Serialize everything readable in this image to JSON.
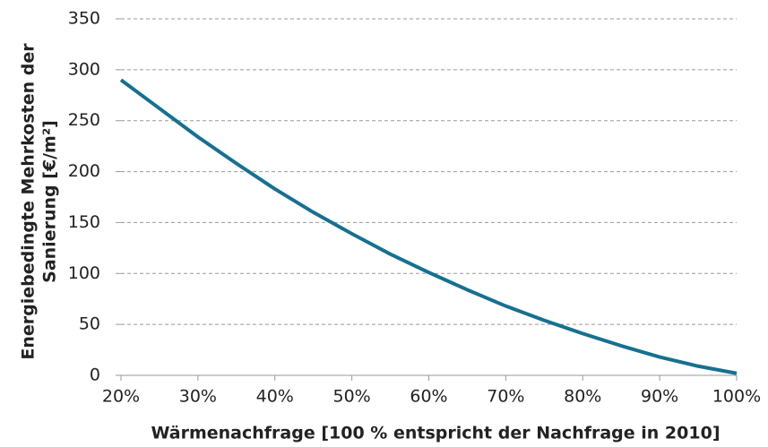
{
  "chart_data": {
    "type": "line",
    "xlabel": "Wärmenachfrage [100 % entspricht der Nachfrage in 2010]",
    "ylabel": [
      "Energiebedingte Mehrkosten der",
      "Sanierung [€/m²]"
    ],
    "x": [
      20,
      25,
      30,
      35,
      40,
      45,
      50,
      55,
      60,
      65,
      70,
      75,
      80,
      85,
      90,
      95,
      100
    ],
    "series": [
      {
        "color": "#17708f",
        "values": [
          290,
          262,
          234,
          208,
          183,
          160,
          139,
          119,
          101,
          84,
          68,
          54,
          41,
          29,
          18,
          9,
          2
        ]
      }
    ],
    "xlim": [
      20,
      100
    ],
    "xticks": [
      {
        "value": 20,
        "label": "20%"
      },
      {
        "value": 30,
        "label": "30%"
      },
      {
        "value": 40,
        "label": "40%"
      },
      {
        "value": 50,
        "label": "50%"
      },
      {
        "value": 60,
        "label": "60%"
      },
      {
        "value": 70,
        "label": "70%"
      },
      {
        "value": 80,
        "label": "80%"
      },
      {
        "value": 90,
        "label": "90%"
      },
      {
        "value": 100,
        "label": "100%"
      }
    ],
    "ylim": [
      0,
      350
    ],
    "yticks": [
      0,
      50,
      100,
      150,
      200,
      250,
      300,
      350
    ],
    "grid": true
  }
}
